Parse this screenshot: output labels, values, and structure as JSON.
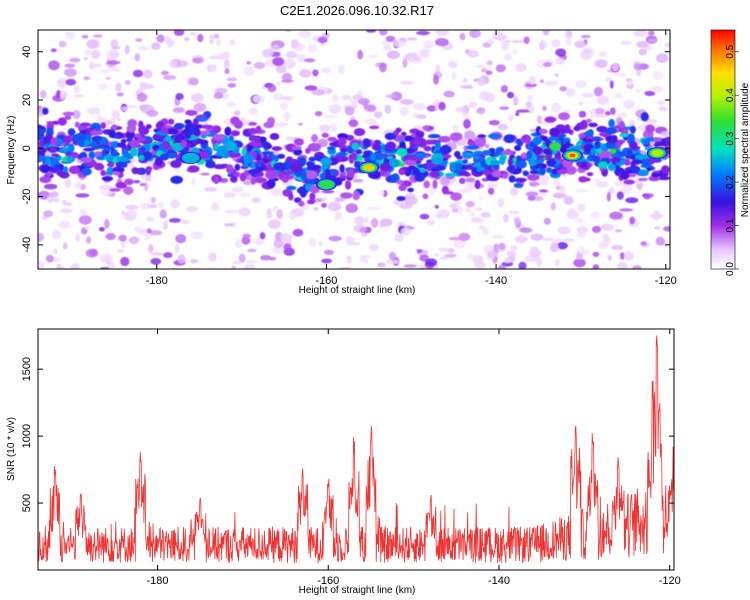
{
  "title": "C2E1.2026.096.10.32.R17",
  "chart_data": [
    {
      "type": "heatmap",
      "title": "C2E1.2026.096.10.32.R17",
      "xlabel": "Height of straight line (km)",
      "ylabel": "Frequency (Hz)",
      "xlim": [
        -194,
        -119.5
      ],
      "ylim": [
        -50,
        49
      ],
      "xticks": [
        -180,
        -160,
        -140,
        -120
      ],
      "xtick_labels": [
        "-180",
        "-160",
        "-140",
        "-120"
      ],
      "yticks": [
        -40,
        -20,
        0,
        20,
        40
      ],
      "ytick_labels": [
        "-40",
        "-20",
        "0",
        "20",
        "40"
      ],
      "colorbar": {
        "label": "Normalized spectral amplitude",
        "range": [
          0,
          0.55
        ],
        "ticks": [
          0,
          0.1,
          0.2,
          0.3,
          0.4,
          0.5
        ],
        "tick_labels": [
          "0.0",
          "0.1",
          "0.2",
          "0.3",
          "0.4",
          "0.5"
        ],
        "colormap": "rainbow-white-to-red"
      },
      "ridge_center_hz": [
        {
          "x": -194,
          "y": 0
        },
        {
          "x": -185,
          "y": -3
        },
        {
          "x": -176,
          "y": 2
        },
        {
          "x": -168,
          "y": -3
        },
        {
          "x": -162,
          "y": -12
        },
        {
          "x": -158,
          "y": -5
        },
        {
          "x": -150,
          "y": -4
        },
        {
          "x": -140,
          "y": -5
        },
        {
          "x": -135,
          "y": -2
        },
        {
          "x": -128,
          "y": 0
        },
        {
          "x": -120,
          "y": -2
        }
      ],
      "peaks": [
        {
          "x": -155,
          "y": -8,
          "amplitude": 0.5
        },
        {
          "x": -131,
          "y": -3,
          "amplitude": 0.55
        },
        {
          "x": -121,
          "y": -2,
          "amplitude": 0.4
        },
        {
          "x": -160,
          "y": -15,
          "amplitude": 0.35
        },
        {
          "x": -176,
          "y": -4,
          "amplitude": 0.3
        }
      ]
    },
    {
      "type": "line",
      "xlabel": "Height of straight line (km)",
      "ylabel": "SNR (10 * v/v)",
      "xlim": [
        -194,
        -119.5
      ],
      "ylim": [
        0,
        1800
      ],
      "xticks": [
        -180,
        -160,
        -140,
        -120
      ],
      "xtick_labels": [
        "-180",
        "-160",
        "-140",
        "-120"
      ],
      "yticks": [
        500,
        1000,
        1500
      ],
      "ytick_labels": [
        "500",
        "1000",
        "1500"
      ],
      "color": "#ee3333",
      "baseline": 250,
      "spikes": [
        {
          "x": -192,
          "value": 800
        },
        {
          "x": -189,
          "value": 620
        },
        {
          "x": -182,
          "value": 900
        },
        {
          "x": -175,
          "value": 560
        },
        {
          "x": -163,
          "value": 810
        },
        {
          "x": -160,
          "value": 700
        },
        {
          "x": -157,
          "value": 1020
        },
        {
          "x": -155,
          "value": 1100
        },
        {
          "x": -148,
          "value": 600
        },
        {
          "x": -131,
          "value": 1150
        },
        {
          "x": -129,
          "value": 1100
        },
        {
          "x": -126,
          "value": 850
        },
        {
          "x": -122,
          "value": 1450
        },
        {
          "x": -121.5,
          "value": 1800
        }
      ]
    }
  ]
}
